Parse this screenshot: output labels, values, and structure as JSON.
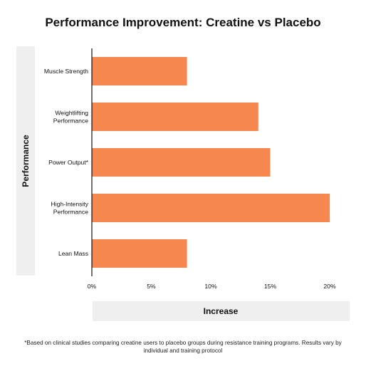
{
  "chart_data": {
    "type": "bar",
    "orientation": "horizontal",
    "title": "Performance Improvement: Creatine vs Placebo",
    "xlabel": "Increase",
    "ylabel": "Performance",
    "categories": [
      [
        "Muscle Strength"
      ],
      [
        "Weightlifting",
        "Performance"
      ],
      [
        "Power Output*"
      ],
      [
        "High-Intensity",
        "Performance"
      ],
      [
        "Lean Mass"
      ]
    ],
    "values": [
      8,
      14,
      15,
      20,
      8
    ],
    "unit": "%",
    "xlim": [
      0,
      20
    ],
    "xticks": [
      "0%",
      "5%",
      "10%",
      "15%",
      "20%"
    ],
    "grid": false,
    "legend": "none",
    "bar_color": "#f5874f",
    "axis_label_bg": "#efefef",
    "footnote": "*Based on clinical studies comparing creatine users to placebo groups during resistance training programs. Results vary by individual and training protocol"
  }
}
